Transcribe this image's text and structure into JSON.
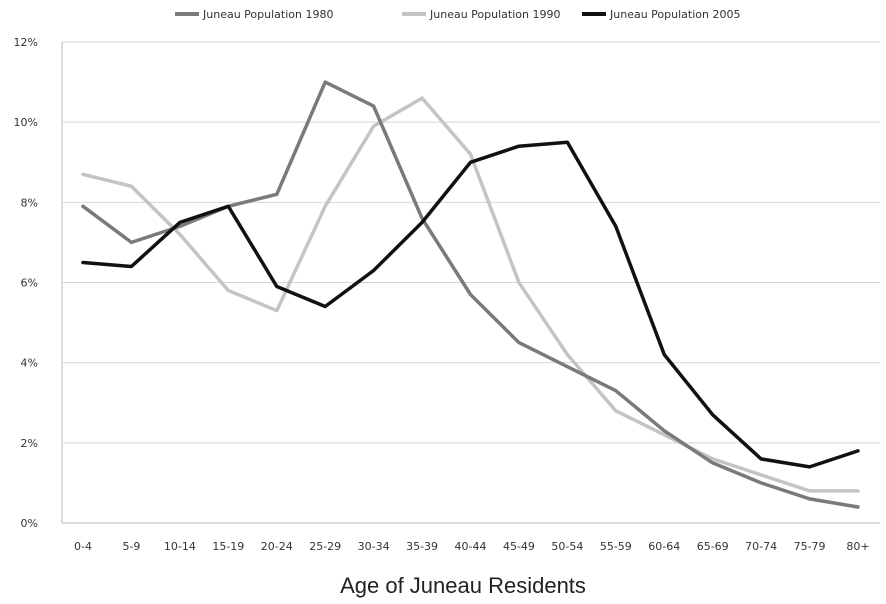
{
  "chart_data": {
    "type": "line",
    "title": "",
    "xlabel": "Age of Juneau Residents",
    "ylabel": "",
    "categories": [
      "0-4",
      "5-9",
      "10-14",
      "15-19",
      "20-24",
      "25-29",
      "30-34",
      "35-39",
      "40-44",
      "45-49",
      "50-54",
      "55-59",
      "60-64",
      "65-69",
      "70-74",
      "75-79",
      "80+"
    ],
    "ylim": [
      0,
      12
    ],
    "yticks": [
      0,
      2,
      4,
      6,
      8,
      10,
      12
    ],
    "ytick_labels": [
      "0%",
      "2%",
      "4%",
      "6%",
      "8%",
      "10%",
      "12%"
    ],
    "grid": true,
    "legend_position": "top",
    "series": [
      {
        "name": "Juneau Population 1980",
        "color": "#7a7a7a",
        "values": [
          7.9,
          7.0,
          7.4,
          7.9,
          8.2,
          11.0,
          10.4,
          7.6,
          5.7,
          4.5,
          3.9,
          3.3,
          2.3,
          1.5,
          1.0,
          0.6,
          0.4
        ]
      },
      {
        "name": "Juneau Population 1990",
        "color": "#c4c4c4",
        "values": [
          8.7,
          8.4,
          7.2,
          5.8,
          5.3,
          7.9,
          9.9,
          10.6,
          9.2,
          6.0,
          4.2,
          2.8,
          2.2,
          1.6,
          1.2,
          0.8,
          0.8
        ]
      },
      {
        "name": "Juneau Population 2005",
        "color": "#111111",
        "values": [
          6.5,
          6.4,
          7.5,
          7.9,
          5.9,
          5.4,
          6.3,
          7.5,
          9.0,
          9.4,
          9.5,
          7.4,
          4.2,
          2.7,
          1.6,
          1.4,
          1.8
        ]
      }
    ]
  }
}
